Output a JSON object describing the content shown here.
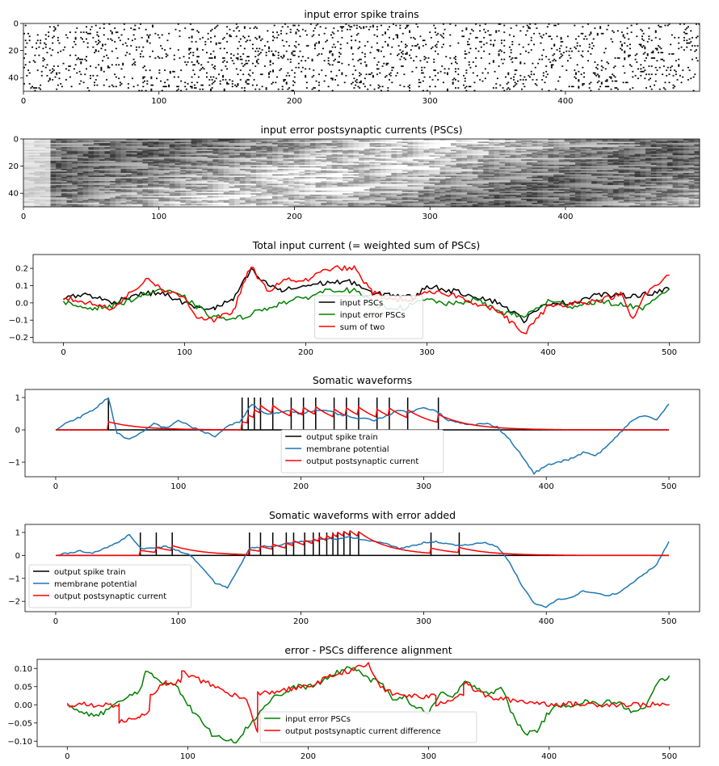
{
  "chart_data": [
    {
      "type": "heatmap",
      "title": "input error spike trains",
      "xlim": [
        0,
        499
      ],
      "ylim": [
        50,
        0
      ],
      "xticks": [
        0,
        100,
        200,
        300,
        400
      ],
      "yticks": [
        0,
        20,
        40
      ],
      "rows": 50,
      "columns": 500,
      "encoding": "binary spike raster (black = spike)"
    },
    {
      "type": "heatmap",
      "title": "input error postsynaptic currents (PSCs)",
      "xlim": [
        0,
        499
      ],
      "ylim": [
        50,
        0
      ],
      "xticks": [
        0,
        100,
        200,
        300,
        400
      ],
      "yticks": [
        0,
        20,
        40
      ],
      "rows": 50,
      "columns": 500,
      "encoding": "grayscale exponentially decaying traces"
    },
    {
      "type": "line",
      "title": "Total input current (= weighted sum of PSCs)",
      "xlim": [
        -25,
        525
      ],
      "ylim": [
        -0.23,
        0.28
      ],
      "xticks": [
        0,
        100,
        200,
        300,
        400,
        500
      ],
      "yticks": [
        -0.2,
        -0.1,
        0.0,
        0.1,
        0.2
      ],
      "ytick_labels": [
        "−0.2",
        "−0.1",
        "0.0",
        "0.1",
        "0.2"
      ],
      "legend": "lower-center",
      "series": [
        {
          "name": "input PSCs",
          "color": "#000000",
          "x": [
            0,
            20,
            40,
            60,
            80,
            100,
            110,
            125,
            140,
            155,
            165,
            180,
            200,
            220,
            240,
            255,
            270,
            290,
            300,
            320,
            340,
            360,
            380,
            400,
            420,
            440,
            460,
            480,
            500
          ],
          "y": [
            0.03,
            0.05,
            0.0,
            0.05,
            0.06,
            0.0,
            -0.03,
            -0.03,
            0.02,
            0.19,
            0.12,
            0.07,
            0.1,
            0.12,
            0.12,
            0.05,
            0.05,
            0.03,
            0.1,
            0.07,
            0.04,
            0.0,
            -0.1,
            0.0,
            0.0,
            0.05,
            0.04,
            0.05,
            0.08
          ]
        },
        {
          "name": "input error PSCs",
          "color": "#008000",
          "x": [
            0,
            20,
            40,
            60,
            80,
            100,
            120,
            140,
            160,
            180,
            200,
            220,
            240,
            260,
            280,
            300,
            320,
            340,
            360,
            380,
            400,
            420,
            440,
            460,
            480,
            500
          ],
          "y": [
            0.0,
            -0.03,
            -0.02,
            0.03,
            0.08,
            0.03,
            -0.07,
            -0.1,
            -0.05,
            0.0,
            0.03,
            0.08,
            0.07,
            -0.02,
            -0.03,
            0.02,
            -0.01,
            0.02,
            -0.05,
            -0.08,
            0.01,
            -0.02,
            0.01,
            -0.01,
            -0.03,
            0.08
          ]
        },
        {
          "name": "sum of two",
          "color": "#ff0000",
          "x": [
            0,
            20,
            40,
            60,
            70,
            80,
            100,
            110,
            125,
            140,
            155,
            160,
            170,
            180,
            200,
            220,
            240,
            255,
            270,
            290,
            300,
            320,
            340,
            360,
            380,
            400,
            420,
            440,
            460,
            470,
            480,
            500
          ],
          "y": [
            0.03,
            0.0,
            -0.03,
            0.08,
            0.15,
            0.08,
            0.03,
            -0.08,
            -0.1,
            -0.05,
            0.22,
            0.14,
            0.07,
            0.13,
            0.13,
            0.2,
            0.2,
            0.06,
            0.02,
            0.02,
            0.06,
            0.05,
            0.0,
            -0.05,
            -0.18,
            -0.02,
            0.0,
            0.01,
            0.05,
            -0.1,
            0.05,
            0.16
          ]
        }
      ]
    },
    {
      "type": "line",
      "title": "Somatic waveforms",
      "xlim": [
        -25,
        525
      ],
      "ylim": [
        -1.45,
        1.25
      ],
      "xticks": [
        0,
        100,
        200,
        300,
        400,
        500
      ],
      "yticks": [
        -1,
        0,
        1
      ],
      "ytick_labels": [
        "−1",
        "0",
        "1"
      ],
      "legend": "lower-center",
      "spike_times": [
        43,
        152,
        157,
        162,
        167,
        177,
        192,
        202,
        212,
        227,
        237,
        247,
        262,
        272,
        287,
        312
      ],
      "series": [
        {
          "name": "output spike train",
          "color": "#000000"
        },
        {
          "name": "membrane potential",
          "color": "#1f77b4",
          "x": [
            0,
            10,
            20,
            30,
            43,
            50,
            60,
            70,
            80,
            90,
            100,
            110,
            120,
            130,
            140,
            150,
            160,
            170,
            180,
            190,
            200,
            210,
            220,
            230,
            240,
            250,
            260,
            270,
            280,
            290,
            300,
            310,
            320,
            330,
            340,
            350,
            360,
            370,
            380,
            390,
            400,
            410,
            420,
            430,
            440,
            450,
            460,
            470,
            480,
            490,
            500
          ],
          "y": [
            0.0,
            0.25,
            0.4,
            0.6,
            1.0,
            -0.1,
            -0.3,
            -0.1,
            0.2,
            0.05,
            0.3,
            0.1,
            -0.05,
            -0.2,
            0.1,
            0.25,
            0.8,
            0.5,
            0.5,
            0.6,
            0.5,
            0.6,
            0.6,
            0.5,
            0.4,
            0.35,
            0.3,
            0.45,
            0.6,
            0.55,
            0.7,
            0.6,
            0.3,
            0.2,
            0.15,
            0.2,
            0.1,
            -0.3,
            -0.8,
            -1.35,
            -1.1,
            -1.0,
            -0.9,
            -0.7,
            -0.8,
            -0.5,
            -0.1,
            0.3,
            0.45,
            0.3,
            0.8
          ]
        },
        {
          "name": "output postsynaptic current",
          "color": "#ff0000"
        }
      ]
    },
    {
      "type": "line",
      "title": "Somatic waveforms with error added",
      "xlim": [
        -25,
        525
      ],
      "ylim": [
        -2.45,
        1.35
      ],
      "xticks": [
        0,
        100,
        200,
        300,
        400,
        500
      ],
      "yticks": [
        -2,
        -1,
        0,
        1
      ],
      "ytick_labels": [
        "−2",
        "−1",
        "0",
        "1"
      ],
      "legend": "lower-left",
      "spike_times": [
        69,
        82,
        95,
        158,
        167,
        177,
        188,
        194,
        203,
        210,
        215,
        221,
        226,
        230,
        235,
        240,
        247,
        306,
        329
      ],
      "series": [
        {
          "name": "output spike train",
          "color": "#000000"
        },
        {
          "name": "membrane potential",
          "color": "#1f77b4",
          "x": [
            0,
            10,
            20,
            30,
            40,
            50,
            60,
            70,
            80,
            90,
            100,
            110,
            120,
            130,
            140,
            150,
            158,
            170,
            180,
            190,
            200,
            210,
            220,
            230,
            240,
            250,
            260,
            270,
            280,
            290,
            300,
            310,
            320,
            330,
            340,
            350,
            360,
            370,
            380,
            390,
            400,
            410,
            420,
            430,
            440,
            450,
            460,
            470,
            480,
            490,
            500
          ],
          "y": [
            0.0,
            0.1,
            0.2,
            0.1,
            0.3,
            0.55,
            0.9,
            0.3,
            0.3,
            0.4,
            0.2,
            0.0,
            -0.6,
            -1.2,
            -1.4,
            -0.5,
            0.3,
            0.4,
            0.4,
            0.55,
            0.6,
            0.65,
            0.75,
            0.7,
            0.8,
            0.7,
            0.6,
            0.5,
            0.3,
            0.4,
            0.55,
            0.6,
            0.5,
            0.4,
            0.5,
            0.55,
            0.4,
            -0.3,
            -1.3,
            -2.1,
            -2.25,
            -1.9,
            -1.85,
            -1.55,
            -1.65,
            -1.75,
            -1.6,
            -1.2,
            -0.8,
            -0.4,
            0.6
          ]
        },
        {
          "name": "output postsynaptic current",
          "color": "#ff0000"
        }
      ]
    },
    {
      "type": "line",
      "title": "error - PSCs difference alignment",
      "xlim": [
        -25,
        525
      ],
      "ylim": [
        -0.115,
        0.125
      ],
      "xticks": [
        0,
        100,
        200,
        300,
        400,
        500
      ],
      "yticks": [
        -0.1,
        -0.05,
        0.0,
        0.05,
        0.1
      ],
      "ytick_labels": [
        "−0.10",
        "−0.05",
        "0.00",
        "0.05",
        "0.10"
      ],
      "legend": "lower-center",
      "series": [
        {
          "name": "input error PSCs",
          "color": "#008000",
          "x": [
            0,
            10,
            20,
            30,
            40,
            50,
            60,
            65,
            70,
            80,
            90,
            100,
            110,
            120,
            130,
            140,
            150,
            160,
            170,
            180,
            190,
            200,
            210,
            220,
            230,
            240,
            250,
            260,
            270,
            280,
            290,
            300,
            310,
            320,
            330,
            340,
            350,
            360,
            370,
            380,
            390,
            400,
            410,
            420,
            430,
            440,
            450,
            460,
            470,
            480,
            490,
            500
          ],
          "y": [
            0.0,
            -0.02,
            -0.03,
            -0.02,
            0.0,
            0.02,
            0.04,
            0.09,
            0.08,
            0.06,
            0.06,
            0.0,
            -0.04,
            -0.08,
            -0.09,
            -0.1,
            -0.06,
            -0.02,
            0.02,
            0.03,
            0.05,
            0.05,
            0.06,
            0.08,
            0.1,
            0.1,
            0.07,
            0.06,
            0.02,
            0.02,
            -0.01,
            -0.02,
            0.03,
            0.02,
            0.06,
            0.05,
            0.03,
            0.05,
            -0.03,
            -0.08,
            -0.07,
            -0.02,
            0.0,
            0.0,
            0.01,
            0.0,
            0.01,
            0.0,
            -0.02,
            -0.01,
            0.06,
            0.08
          ]
        },
        {
          "name": "output postsynaptic current difference",
          "color": "#ff0000",
          "x": [
            0,
            43,
            43.01,
            60,
            68,
            69.01,
            82,
            82.01,
            95,
            95.01,
            150,
            155,
            158,
            158.01,
            200,
            220,
            240,
            250,
            260,
            270,
            300,
            306,
            306.01,
            329,
            329.01,
            350,
            400,
            450,
            500
          ],
          "y": [
            0.0,
            0.0,
            -0.05,
            -0.03,
            -0.02,
            0.03,
            0.06,
            0.05,
            0.07,
            0.09,
            0.01,
            -0.05,
            -0.08,
            0.03,
            0.05,
            0.08,
            0.1,
            0.11,
            0.05,
            0.03,
            0.02,
            0.03,
            0.0,
            0.03,
            0.06,
            0.02,
            0.002,
            0.001,
            0.0
          ]
        }
      ]
    }
  ]
}
